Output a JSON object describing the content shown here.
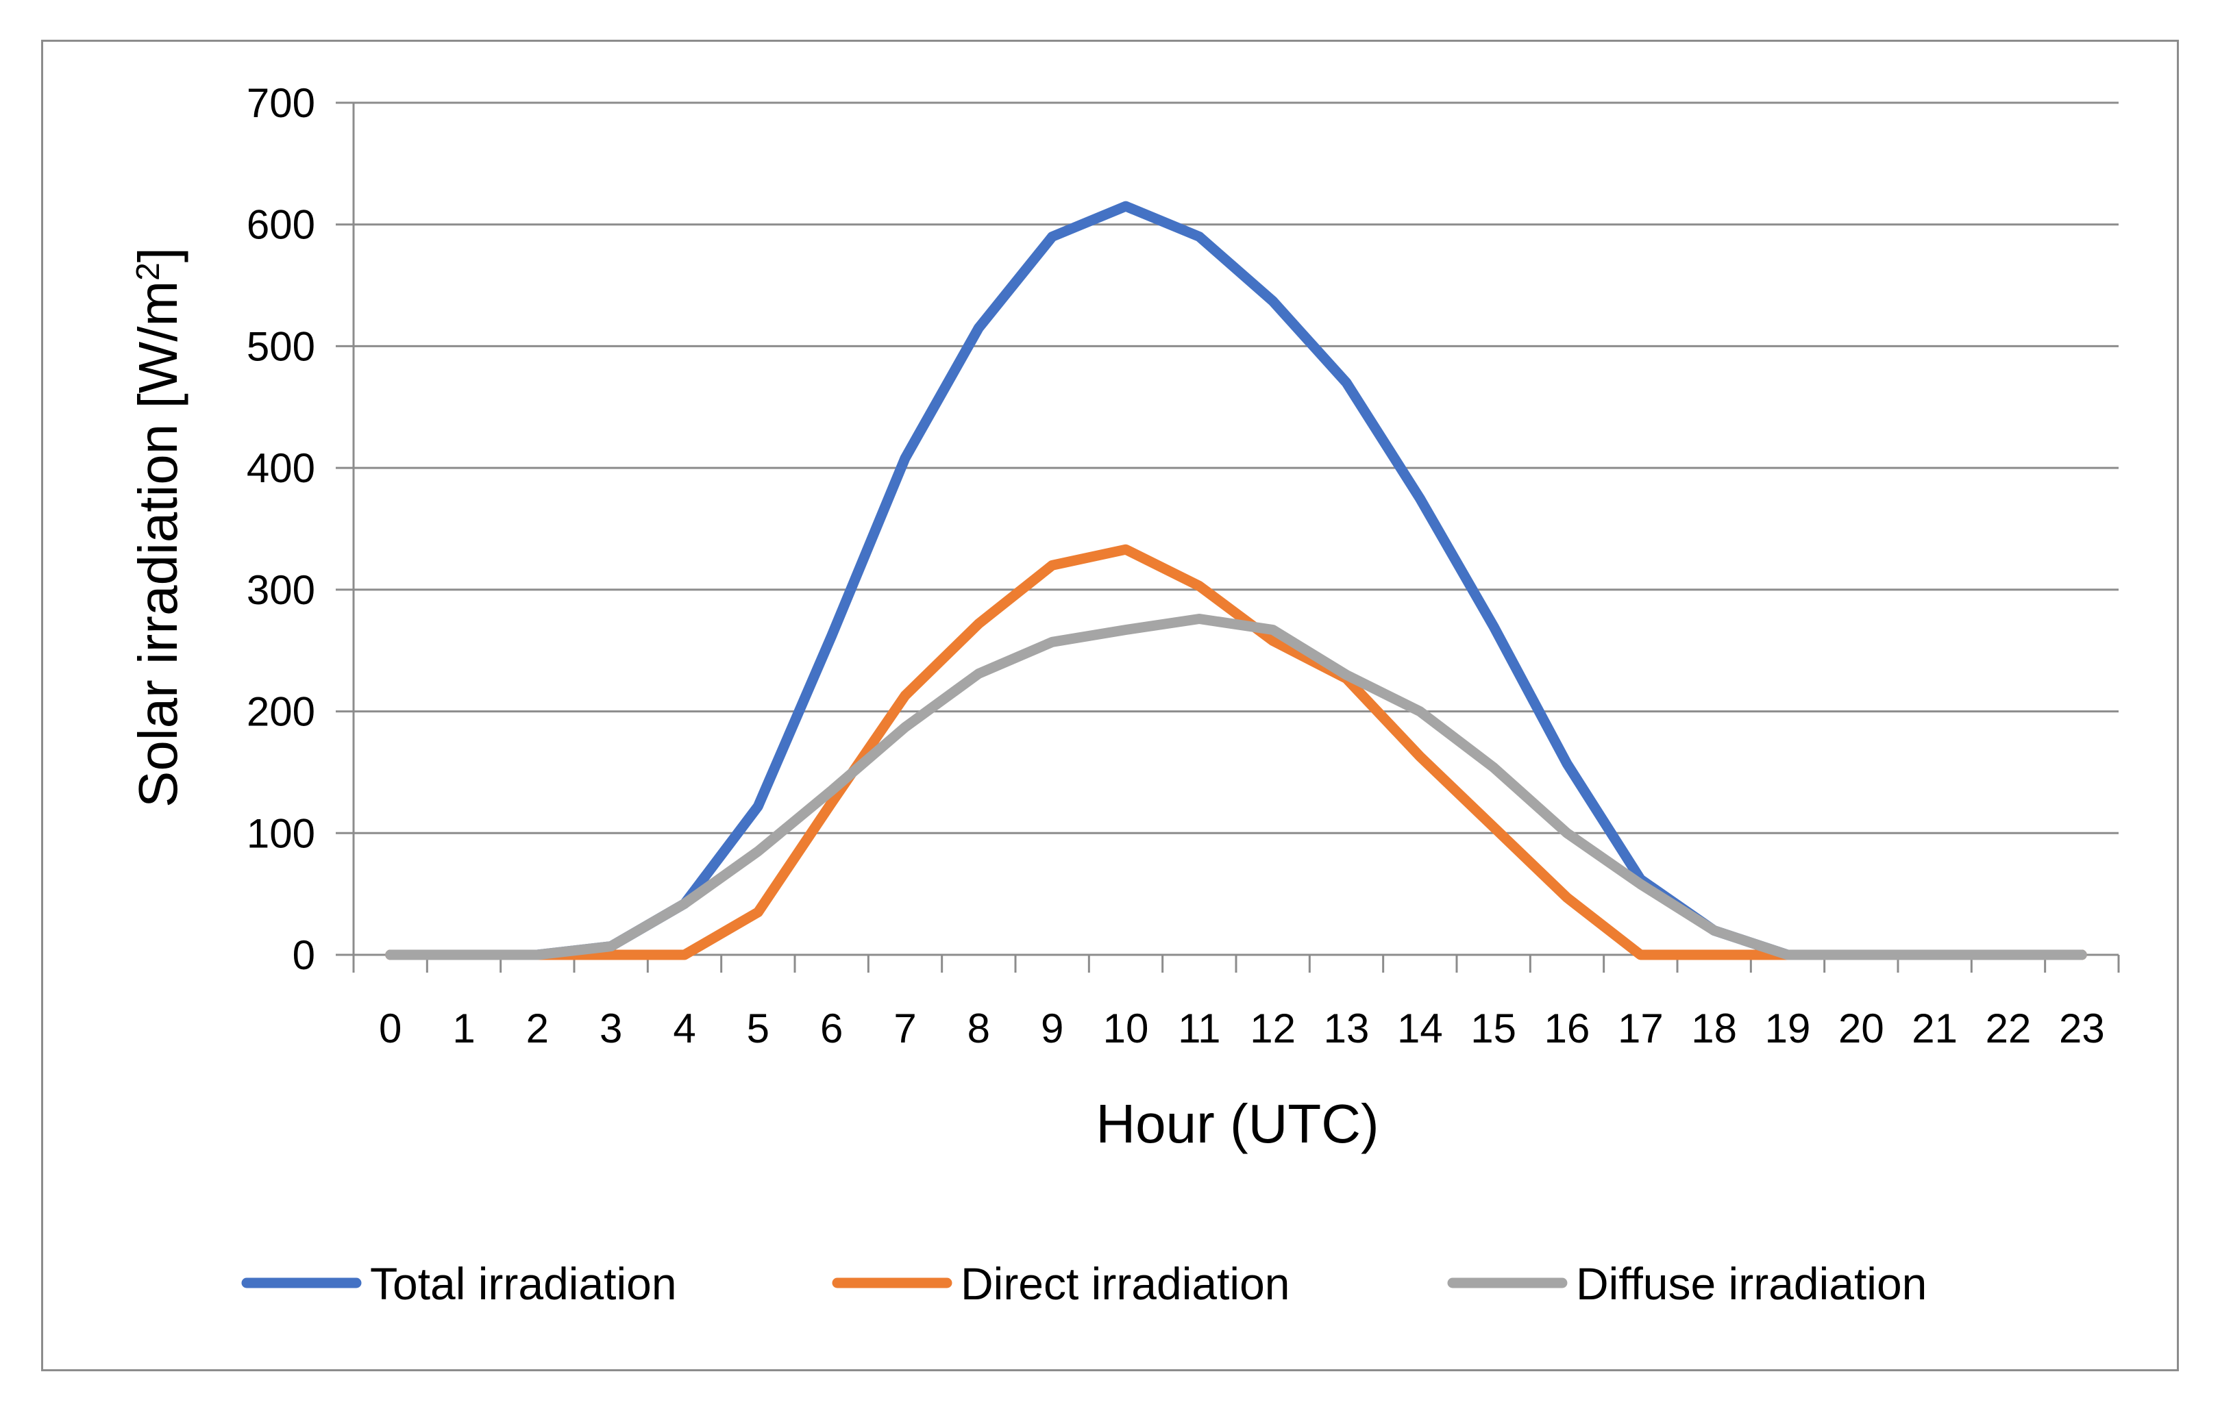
{
  "chart_data": {
    "type": "line",
    "title": "",
    "xlabel": "Hour (UTC)",
    "ylabel_main": "Solar irradiation [W/m",
    "ylabel_sup": "2",
    "ylabel_end": "]",
    "ylim": [
      0,
      700
    ],
    "yticks": [
      0,
      100,
      200,
      300,
      400,
      500,
      600,
      700
    ],
    "grid": true,
    "legend_position": "bottom",
    "x": [
      0,
      1,
      2,
      3,
      4,
      5,
      6,
      7,
      8,
      9,
      10,
      11,
      12,
      13,
      14,
      15,
      16,
      17,
      18,
      19,
      20,
      21,
      22,
      23
    ],
    "series": [
      {
        "name": "Total irradiation",
        "color": "#4472C4",
        "values": [
          0,
          0,
          0,
          7,
          42,
          122,
          262,
          408,
          515,
          590,
          615,
          590,
          537,
          470,
          375,
          270,
          157,
          62,
          20,
          0,
          0,
          0,
          0,
          0
        ]
      },
      {
        "name": "Direct irradiation",
        "color": "#ED7D31",
        "values": [
          0,
          0,
          0,
          0,
          0,
          35,
          125,
          213,
          272,
          320,
          333,
          303,
          258,
          227,
          163,
          105,
          47,
          0,
          0,
          0,
          0,
          0,
          0,
          0
        ]
      },
      {
        "name": "Diffuse irradiation",
        "color": "#A5A5A5",
        "values": [
          0,
          0,
          0,
          7,
          42,
          85,
          135,
          187,
          231,
          257,
          267,
          276,
          267,
          230,
          200,
          154,
          100,
          58,
          20,
          0,
          0,
          0,
          0,
          0
        ]
      }
    ]
  }
}
